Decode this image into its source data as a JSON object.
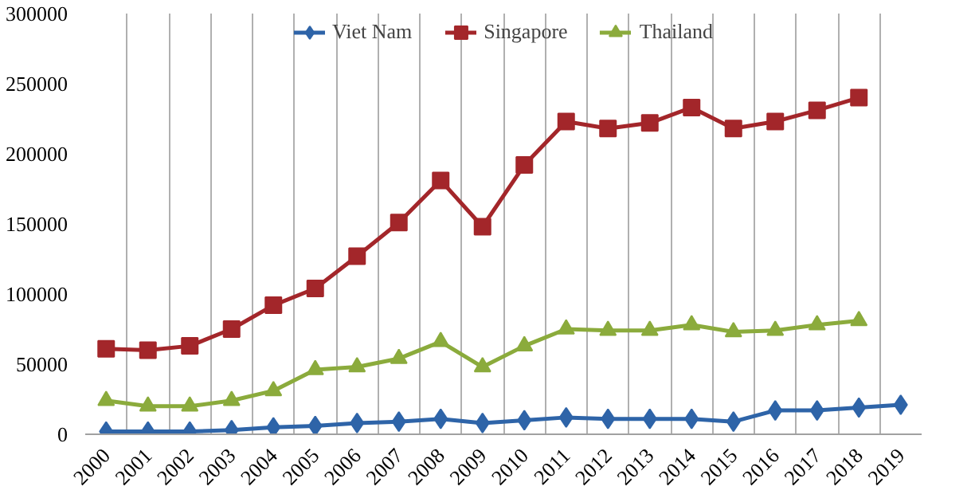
{
  "chart_data": {
    "type": "line",
    "categories": [
      "2000",
      "2001",
      "2002",
      "2003",
      "2004",
      "2005",
      "2006",
      "2007",
      "2008",
      "2009",
      "2010",
      "2011",
      "2012",
      "2013",
      "2014",
      "2015",
      "2016",
      "2017",
      "2018",
      "2019"
    ],
    "series": [
      {
        "name": "Viet Nam",
        "color": "#2e64a8",
        "marker": "diamond",
        "values": [
          2000,
          2000,
          2000,
          3000,
          5000,
          6000,
          8000,
          9000,
          11000,
          8000,
          10000,
          12000,
          11000,
          11000,
          11000,
          9000,
          17000,
          17000,
          19000,
          21000
        ]
      },
      {
        "name": "Singapore",
        "color": "#a3262a",
        "marker": "square",
        "values": [
          61000,
          60000,
          63000,
          75000,
          92000,
          104000,
          127000,
          151000,
          181000,
          148000,
          192000,
          223000,
          218000,
          222000,
          233000,
          218000,
          223000,
          231000,
          240000,
          null
        ]
      },
      {
        "name": "Thailand",
        "color": "#8bab3c",
        "marker": "triangle",
        "values": [
          24000,
          20000,
          20000,
          24000,
          31000,
          46000,
          48000,
          54000,
          66000,
          48000,
          63000,
          75000,
          74000,
          74000,
          78000,
          73000,
          74000,
          78000,
          81000,
          null
        ]
      }
    ],
    "ylim": [
      0,
      300000
    ],
    "yticks": [
      0,
      50000,
      100000,
      150000,
      200000,
      250000,
      300000
    ],
    "grid": "x",
    "legend": "top",
    "line_style": "solid"
  }
}
